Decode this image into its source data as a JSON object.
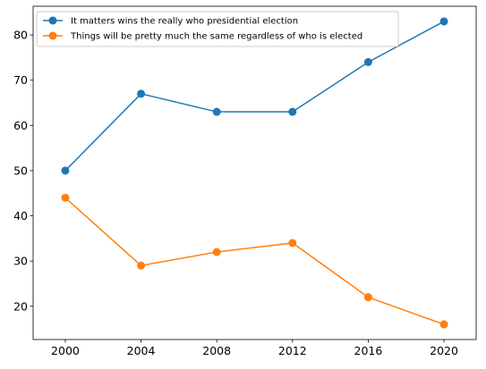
{
  "chart_data": {
    "type": "line",
    "x": [
      2000,
      2004,
      2008,
      2012,
      2016,
      2020
    ],
    "series": [
      {
        "name": "It matters wins the really who presidential election",
        "color": "#1f77b4",
        "values": [
          50,
          67,
          63,
          63,
          74,
          83
        ]
      },
      {
        "name": "Things will be pretty much the same regardless of who is elected",
        "color": "#ff7f0e",
        "values": [
          44,
          29,
          32,
          34,
          22,
          16
        ]
      }
    ],
    "xticks": [
      "2000",
      "2004",
      "2008",
      "2012",
      "2016",
      "2020"
    ],
    "yticks": [
      "20",
      "30",
      "40",
      "50",
      "60",
      "70",
      "80"
    ],
    "xlim": [
      1998.3,
      2021.7
    ],
    "ylim": [
      12.65,
      86.35
    ],
    "grid": false,
    "legend_position": "top-left",
    "marker": "circle"
  }
}
